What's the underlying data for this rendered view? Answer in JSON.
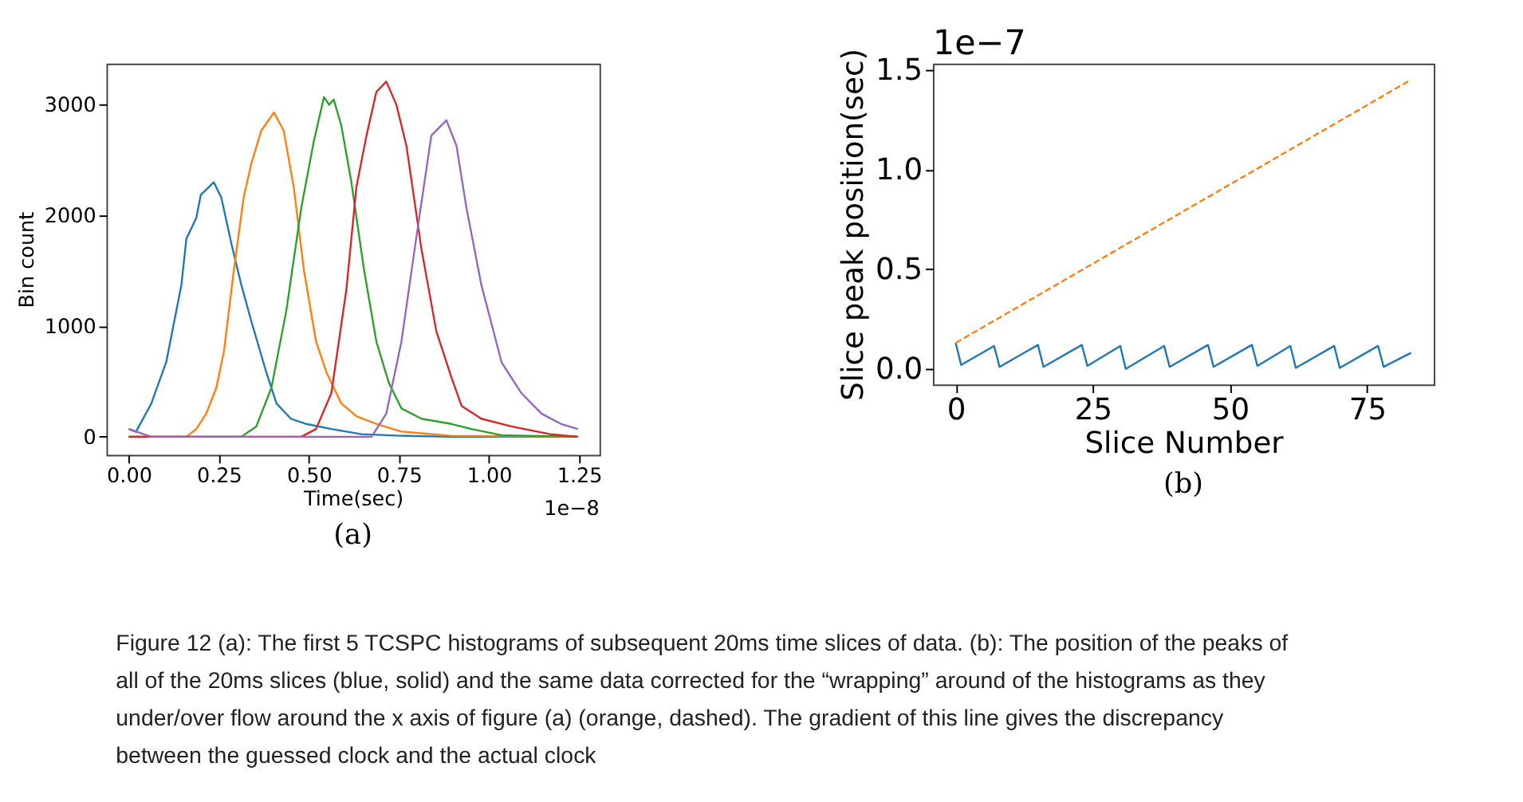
{
  "chart_data": [
    {
      "type": "line",
      "xlabel": "Time(sec)",
      "ylabel": "Bin count",
      "xlim": [
        -0.062,
        1.307
      ],
      "ylim": [
        -163,
        3372
      ],
      "xticks": [
        {
          "value": 0,
          "label": "0.00"
        },
        0.25,
        {
          "value": 0.5,
          "label": "0.50"
        },
        0.75,
        {
          "value": 1,
          "label": "1.00"
        },
        1.25
      ],
      "yticks": [
        0,
        1000,
        2000,
        3000
      ],
      "grid": false,
      "legend": false,
      "marker": "none",
      "line_style": "solid",
      "annotations": [
        "1e−8",
        "(a)"
      ],
      "series": [
        {
          "color": "#1f77b4",
          "x": [
            0,
            0.02,
            0.0625,
            0.104,
            0.146,
            0.16,
            0.1875,
            0.2,
            0.236,
            0.257,
            0.285,
            0.3125,
            0.34,
            0.382,
            0.41,
            0.45,
            0.493,
            0.5625,
            0.646,
            0.757,
            0.9,
            1.247
          ],
          "values": [
            70,
            45,
            300,
            675,
            1370,
            1790,
            1977,
            2186,
            2300,
            2160,
            1744,
            1372,
            1047,
            581,
            302,
            163,
            116,
            70,
            23,
            9,
            0,
            0
          ]
        },
        {
          "color": "#ff7f0e",
          "x": [
            0,
            0.16,
            0.1875,
            0.215,
            0.243,
            0.264,
            0.292,
            0.319,
            0.34,
            0.368,
            0.403,
            0.43,
            0.458,
            0.486,
            0.52,
            0.549,
            0.59,
            0.632,
            0.6875,
            0.757,
            0.896,
            1.247
          ],
          "values": [
            0,
            0,
            70,
            209,
            442,
            767,
            1512,
            2163,
            2465,
            2767,
            2930,
            2767,
            2256,
            1512,
            860,
            581,
            302,
            186,
            116,
            47,
            9,
            0
          ]
        },
        {
          "color": "#2ca02c",
          "x": [
            0,
            0.3125,
            0.354,
            0.396,
            0.4375,
            0.479,
            0.514,
            0.542,
            0.556,
            0.569,
            0.59,
            0.618,
            0.653,
            0.6875,
            0.722,
            0.757,
            0.8125,
            0.896,
            0.951,
            1.035,
            1.247
          ],
          "values": [
            0,
            0,
            93,
            442,
            1140,
            2070,
            2674,
            3070,
            3000,
            3047,
            2814,
            2302,
            1512,
            860,
            488,
            256,
            163,
            116,
            70,
            14,
            0
          ]
        },
        {
          "color": "#d62728",
          "x": [
            0,
            0.479,
            0.52,
            0.5625,
            0.604,
            0.632,
            0.66,
            0.6875,
            0.715,
            0.743,
            0.771,
            0.8125,
            0.854,
            0.896,
            0.924,
            0.979,
            1.0625,
            1.17,
            1.247
          ],
          "values": [
            0,
            0,
            70,
            395,
            1326,
            2256,
            2721,
            3116,
            3209,
            3000,
            2628,
            1698,
            953,
            535,
            279,
            163,
            93,
            23,
            0
          ]
        },
        {
          "color": "#9467bd",
          "x": [
            0,
            0.0625,
            0.674,
            0.715,
            0.757,
            0.8,
            0.84,
            0.882,
            0.91,
            0.9375,
            0.979,
            1.035,
            1.09,
            1.146,
            1.2,
            1.247
          ],
          "values": [
            70,
            0,
            0,
            209,
            860,
            1837,
            2721,
            2860,
            2628,
            2070,
            1372,
            674,
            395,
            209,
            116,
            70
          ]
        }
      ]
    },
    {
      "type": "line",
      "xlabel": "Slice Number",
      "ylabel": "Slice peak position(sec)",
      "xlim": [
        -4.15,
        87.15
      ],
      "ylim": [
        -0.078,
        1.531
      ],
      "xticks": [
        0,
        25,
        50,
        75
      ],
      "yticks": [
        {
          "value": 0,
          "label": "0.0"
        },
        0.5,
        {
          "value": 1,
          "label": "1.0"
        },
        1.5
      ],
      "grid": false,
      "legend": false,
      "marker": "none",
      "annotations": [
        "1e−7",
        "(b)",
        "Figure 12  (a): The first 5 TCSPC histograms of subsequent 20ms time slices of data. (b): The position of the peaks of all of the 20ms slices (blue, solid) and the same data corrected for the “wrapping” around of the histograms as they under/over flow around the x axis of figure (a) (orange, dashed). The gradient of this line gives the discrepancy between the guessed clock and the actual clock"
      ],
      "series": [
        {
          "color": "#1f77b4",
          "line_style": "solid",
          "x": [
            0,
            1,
            7,
            8,
            15,
            16,
            23,
            24,
            30,
            31,
            38,
            39,
            46,
            47,
            54,
            55,
            61,
            62,
            69,
            70,
            77,
            78,
            83
          ],
          "values": [
            0.13,
            0.02,
            0.115,
            0.01,
            0.12,
            0.01,
            0.12,
            0.015,
            0.115,
            0.0,
            0.115,
            0.01,
            0.12,
            0.01,
            0.12,
            0.015,
            0.115,
            0.005,
            0.115,
            0.005,
            0.115,
            0.01,
            0.08
          ]
        },
        {
          "color": "#ff7f0e",
          "line_style": "dashed",
          "x": [
            0,
            83
          ],
          "values": [
            0.13,
            1.45
          ]
        }
      ]
    }
  ]
}
